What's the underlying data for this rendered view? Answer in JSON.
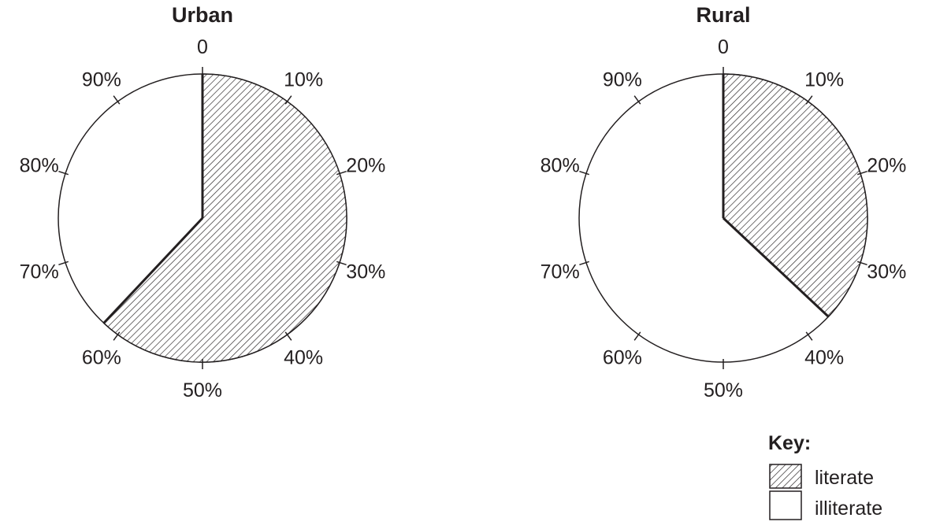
{
  "chart_data": [
    {
      "type": "pie",
      "title": "Urban",
      "categories": [
        "literate",
        "illiterate"
      ],
      "values": [
        62,
        38
      ],
      "start_label": "0",
      "tick_labels": [
        "10%",
        "20%",
        "30%",
        "40%",
        "50%",
        "60%",
        "70%",
        "80%",
        "90%"
      ]
    },
    {
      "type": "pie",
      "title": "Rural",
      "categories": [
        "literate",
        "illiterate"
      ],
      "values": [
        37,
        63
      ],
      "start_label": "0",
      "tick_labels": [
        "10%",
        "20%",
        "30%",
        "40%",
        "50%",
        "60%",
        "70%",
        "80%",
        "90%"
      ]
    }
  ],
  "legend": {
    "title": "Key:",
    "items": [
      {
        "label": "literate",
        "fill": "hatched"
      },
      {
        "label": "illiterate",
        "fill": "plain"
      }
    ]
  },
  "colors": {
    "ink": "#231f20",
    "background": "#ffffff"
  }
}
